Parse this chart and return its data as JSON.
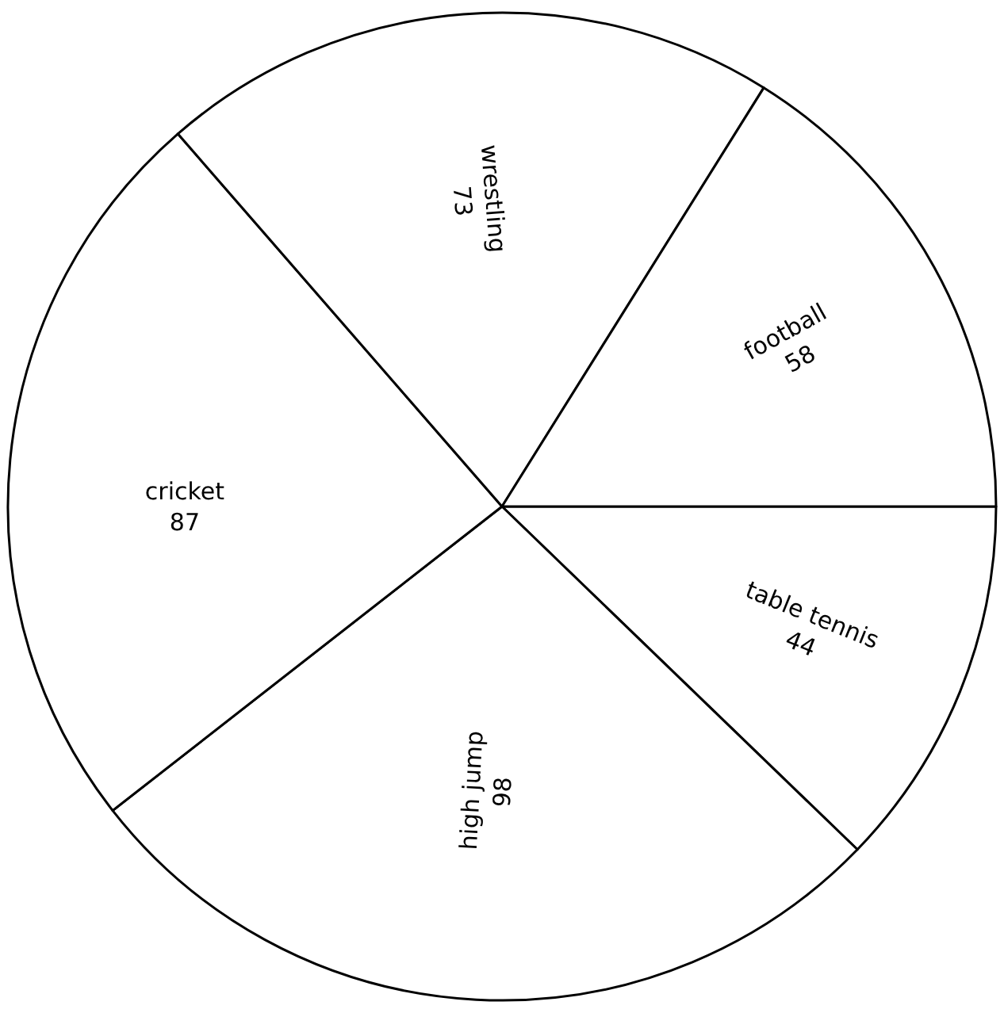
{
  "chart_data": {
    "type": "pie",
    "categories": [
      "table tennis",
      "high jump",
      "cricket",
      "wrestling",
      "football"
    ],
    "values": [
      44,
      98,
      87,
      73,
      58
    ],
    "colors": [
      "#ffffff",
      "#ffffff",
      "#ffffff",
      "#ffffff",
      "#ffffff"
    ],
    "data_labels": true,
    "legend": false
  }
}
